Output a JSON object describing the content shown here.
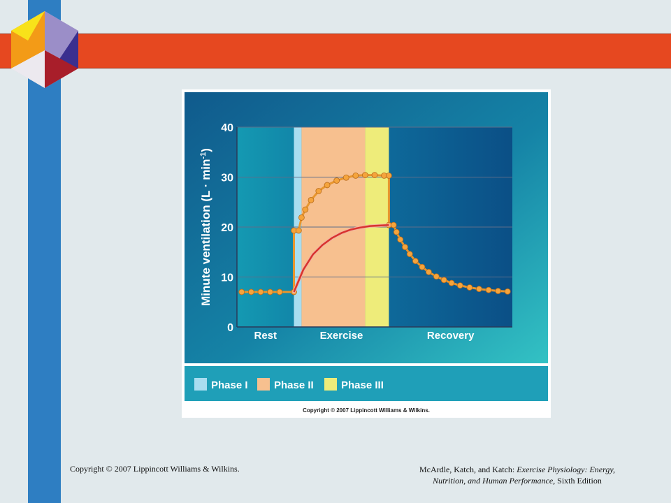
{
  "slide": {
    "footer_left": "Copyright © 2007 Lippincott Williams & Wilkins.",
    "footer_right_authors": "McArdle, Katch, and Katch:",
    "footer_right_title_1": "Exercise Physiology: Energy,",
    "footer_right_title_2": "Nutrition, and Human Performance,",
    "footer_right_edition": "Sixth Edition"
  },
  "figure": {
    "copyright": "Copyright © 2007 Lippincott Williams & Wilkins.",
    "legend": [
      {
        "label": "Phase I",
        "color": "#a9ddf0"
      },
      {
        "label": "Phase II",
        "color": "#f7c08f"
      },
      {
        "label": "Phase III",
        "color": "#eeec7a"
      }
    ]
  },
  "chart_data": {
    "type": "line",
    "ylabel": "Minute ventilation (L · min",
    "ylabel_sup": "-1",
    "ylabel_close": ")",
    "ylim": [
      0,
      40
    ],
    "yticks": [
      0,
      10,
      20,
      30,
      40
    ],
    "grid": true,
    "xlim": [
      0,
      29
    ],
    "regions": [
      {
        "label": "Rest",
        "x": [
          0,
          6
        ]
      },
      {
        "label": "Exercise",
        "x": [
          6,
          16
        ]
      },
      {
        "label": "Recovery",
        "x": [
          16,
          29
        ]
      }
    ],
    "phase_bands": [
      {
        "name": "Phase I",
        "x": [
          6,
          6.8
        ],
        "color": "#a9ddf0"
      },
      {
        "name": "Phase II",
        "x": [
          6.8,
          13.5
        ],
        "color": "#f7c08f"
      },
      {
        "name": "Phase III",
        "x": [
          13.5,
          16
        ],
        "color": "#eeec7a"
      }
    ],
    "series": [
      {
        "color": "#e8962e",
        "points": [
          [
            0.5,
            7
          ],
          [
            1.5,
            7
          ],
          [
            2.5,
            7
          ],
          [
            3.5,
            7
          ],
          [
            4.5,
            7
          ],
          [
            6,
            7
          ],
          [
            6,
            19.3
          ],
          [
            6.5,
            19.3
          ],
          [
            6.8,
            21.9
          ],
          [
            7.2,
            23.5
          ],
          [
            7.8,
            25.4
          ],
          [
            8.6,
            27.2
          ],
          [
            9.5,
            28.4
          ],
          [
            10.5,
            29.3
          ],
          [
            11.5,
            29.9
          ],
          [
            12.5,
            30.3
          ],
          [
            13.5,
            30.4
          ],
          [
            14.5,
            30.4
          ],
          [
            15.5,
            30.3
          ],
          [
            16,
            30.3
          ],
          [
            16,
            20.4
          ],
          [
            16.5,
            20.4
          ],
          [
            16.8,
            19
          ],
          [
            17.2,
            17.5
          ],
          [
            17.7,
            16
          ],
          [
            18.2,
            14.6
          ],
          [
            18.8,
            13.2
          ],
          [
            19.5,
            12
          ],
          [
            20.2,
            11
          ],
          [
            21,
            10.1
          ],
          [
            21.8,
            9.4
          ],
          [
            22.6,
            8.8
          ],
          [
            23.5,
            8.3
          ],
          [
            24.5,
            7.9
          ],
          [
            25.5,
            7.6
          ],
          [
            26.5,
            7.4
          ],
          [
            27.5,
            7.2
          ],
          [
            28.5,
            7.1
          ]
        ],
        "markers": true
      },
      {
        "color": "#d8342e",
        "points": [
          [
            6,
            7
          ],
          [
            7,
            11.5
          ],
          [
            8,
            14.5
          ],
          [
            9,
            16.4
          ],
          [
            10,
            17.8
          ],
          [
            11,
            18.8
          ],
          [
            12,
            19.5
          ],
          [
            13,
            19.9
          ],
          [
            14,
            20.2
          ],
          [
            15,
            20.3
          ],
          [
            16,
            20.4
          ]
        ],
        "markers": false
      }
    ]
  }
}
